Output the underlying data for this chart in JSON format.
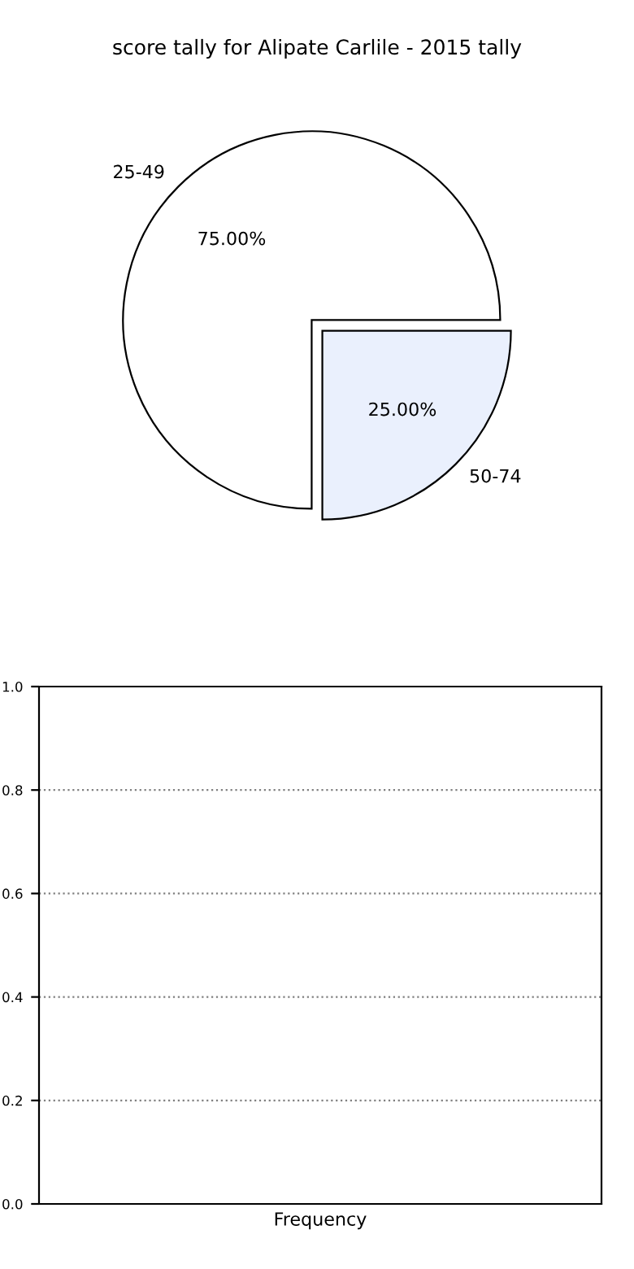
{
  "chart_data": [
    {
      "type": "pie",
      "title": "score tally for Alipate Carlile - 2015 tally",
      "categories": [
        "25-49",
        "50-74"
      ],
      "values": [
        75,
        25
      ],
      "colors": [
        "#ffffff",
        "#eaf0fd"
      ],
      "value_labels": [
        "75.00%",
        "25.00%"
      ]
    },
    {
      "type": "bar",
      "categories": [
        "Frequency"
      ],
      "values": [
        0
      ],
      "ylim": [
        0,
        1
      ],
      "yticks": [
        {
          "value": 0,
          "label": "0.0"
        },
        0.2,
        0.4,
        0.6,
        0.8,
        {
          "value": 1,
          "label": "1.0"
        }
      ],
      "grid": "y"
    }
  ]
}
